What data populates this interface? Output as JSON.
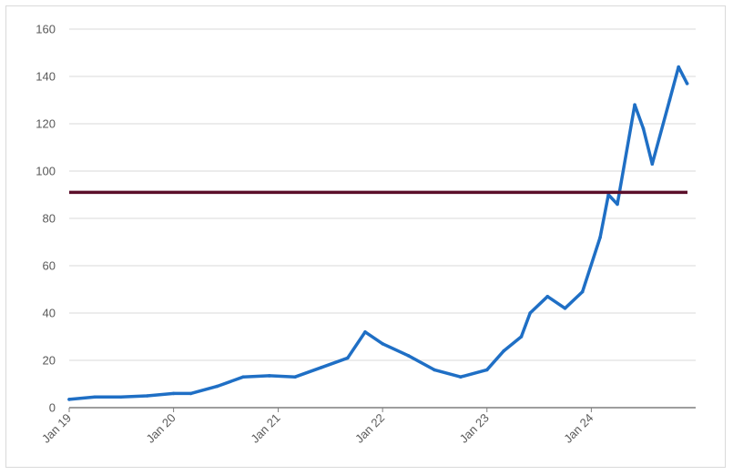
{
  "chart_data": {
    "type": "line",
    "title": "",
    "xlabel": "",
    "ylabel": "",
    "ylim": [
      0,
      160
    ],
    "y_ticks": [
      0,
      20,
      40,
      60,
      80,
      100,
      120,
      140,
      160
    ],
    "x_tick_labels": [
      "Jan 19",
      "Jan 20",
      "Jan 21",
      "Jan 22",
      "Jan 23",
      "Jan 24"
    ],
    "grid": "horizontal",
    "legend": "none",
    "series": [
      {
        "color": "#1f6fc5",
        "x": [
          "2019-01",
          "2019-04",
          "2019-07",
          "2019-10",
          "2020-01",
          "2020-03",
          "2020-06",
          "2020-09",
          "2020-12",
          "2021-03",
          "2021-06",
          "2021-09",
          "2021-11",
          "2022-01",
          "2022-04",
          "2022-07",
          "2022-10",
          "2023-01",
          "2023-03",
          "2023-05",
          "2023-06",
          "2023-08",
          "2023-10",
          "2023-12",
          "2024-02",
          "2024-03",
          "2024-04",
          "2024-06",
          "2024-07",
          "2024-08",
          "2024-10",
          "2024-11",
          "2024-12"
        ],
        "values": [
          3.5,
          4.5,
          4.5,
          5,
          6,
          6,
          9,
          13,
          13.5,
          13,
          17,
          21,
          32,
          27,
          22,
          16,
          13,
          16,
          24,
          30,
          40,
          47,
          42,
          49,
          72,
          90,
          86,
          128,
          118,
          103,
          130,
          144,
          137
        ]
      }
    ],
    "reference_lines": [
      {
        "value": 91,
        "color": "#5b0f2a"
      }
    ]
  }
}
